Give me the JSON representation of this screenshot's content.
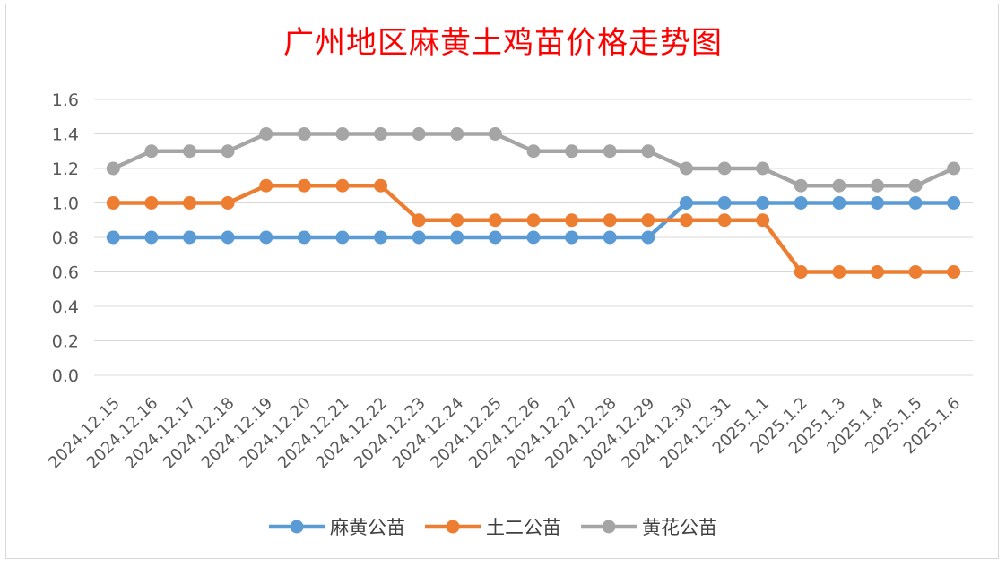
{
  "chart_data": {
    "type": "line",
    "title": "广州地区麻黄土鸡苗价格走势图",
    "xlabel": "",
    "ylabel": "",
    "categories": [
      "2024.12.15",
      "2024.12.16",
      "2024.12.17",
      "2024.12.18",
      "2024.12.19",
      "2024.12.20",
      "2024.12.21",
      "2024.12.22",
      "2024.12.23",
      "2024.12.24",
      "2024.12.25",
      "2024.12.26",
      "2024.12.27",
      "2024.12.28",
      "2024.12.29",
      "2024.12.30",
      "2024.12.31",
      "2025.1.1",
      "2025.1.2",
      "2025.1.3",
      "2025.1.4",
      "2025.1.5",
      "2025.1.6"
    ],
    "ylim": [
      0,
      1.6
    ],
    "yticks": [
      "0.0",
      "0.2",
      "0.4",
      "0.6",
      "0.8",
      "1.0",
      "1.2",
      "1.4",
      "1.6"
    ],
    "grid": true,
    "legend_position": "bottom",
    "series": [
      {
        "name": "麻黄公苗",
        "color": "#5b9bd5",
        "values": [
          0.8,
          0.8,
          0.8,
          0.8,
          0.8,
          0.8,
          0.8,
          0.8,
          0.8,
          0.8,
          0.8,
          0.8,
          0.8,
          0.8,
          0.8,
          1.0,
          1.0,
          1.0,
          1.0,
          1.0,
          1.0,
          1.0,
          1.0
        ]
      },
      {
        "name": "土二公苗",
        "color": "#ed7d31",
        "values": [
          1.0,
          1.0,
          1.0,
          1.0,
          1.1,
          1.1,
          1.1,
          1.1,
          0.9,
          0.9,
          0.9,
          0.9,
          0.9,
          0.9,
          0.9,
          0.9,
          0.9,
          0.9,
          0.6,
          0.6,
          0.6,
          0.6,
          0.6
        ]
      },
      {
        "name": "黄花公苗",
        "color": "#a5a5a5",
        "values": [
          1.2,
          1.3,
          1.3,
          1.3,
          1.4,
          1.4,
          1.4,
          1.4,
          1.4,
          1.4,
          1.4,
          1.3,
          1.3,
          1.3,
          1.3,
          1.2,
          1.2,
          1.2,
          1.1,
          1.1,
          1.1,
          1.1,
          1.2
        ]
      }
    ]
  }
}
